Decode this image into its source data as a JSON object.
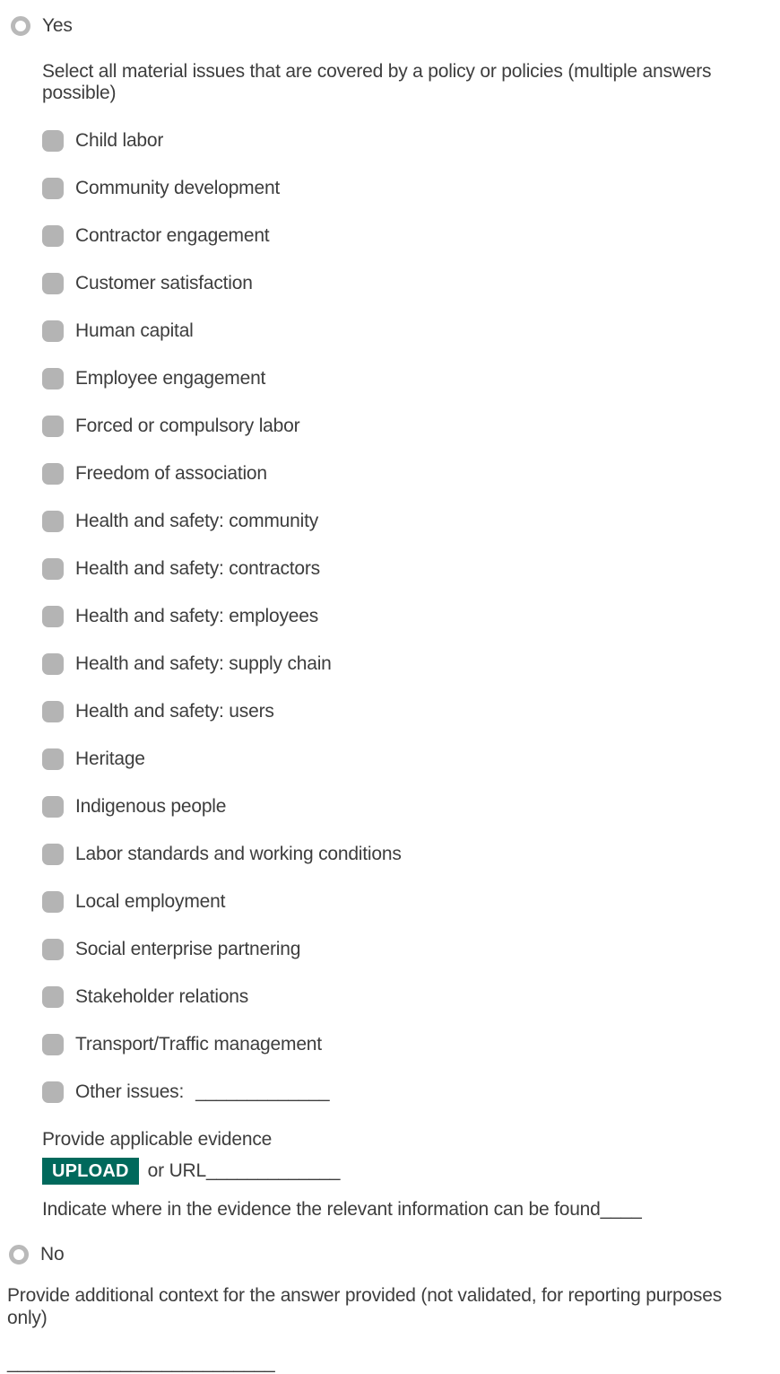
{
  "question": {
    "yes_option": "Yes",
    "no_option": "No",
    "intro": "Select all material issues that are covered by a policy or policies (multiple answers possible)",
    "options": [
      {
        "label": "Child labor"
      },
      {
        "label": "Community development"
      },
      {
        "label": "Contractor engagement"
      },
      {
        "label": "Customer satisfaction"
      },
      {
        "label": "Human capital"
      },
      {
        "label": "Employee engagement"
      },
      {
        "label": "Forced or compulsory labor"
      },
      {
        "label": "Freedom of association"
      },
      {
        "label": "Health and safety: community"
      },
      {
        "label": "Health and safety: contractors"
      },
      {
        "label": "Health and safety: employees"
      },
      {
        "label": "Health and safety: supply chain"
      },
      {
        "label": "Health and safety: users"
      },
      {
        "label": "Heritage"
      },
      {
        "label": "Indigenous people"
      },
      {
        "label": "Labor standards and working conditions"
      },
      {
        "label": "Local employment"
      },
      {
        "label": "Social enterprise partnering"
      },
      {
        "label": "Stakeholder relations"
      },
      {
        "label": "Transport/Traffic management"
      }
    ],
    "other_option": {
      "label": "Other issues:",
      "blank": "_____________"
    }
  },
  "evidence": {
    "prompt": "Provide applicable evidence",
    "upload_button": "UPLOAD",
    "or_url_label": "or URL",
    "url_blank": "_____________",
    "indicate_text": "Indicate where in the evidence the relevant information can be found",
    "indicate_blank": "____"
  },
  "context": {
    "text": "Provide additional context for the answer provided (not validated, for reporting purposes only)",
    "answer_blank": "__________________________"
  },
  "colors": {
    "upload_button_green": "#00695c",
    "control_gray": "#b4b4b4",
    "text_color": "#3d3d3d"
  }
}
